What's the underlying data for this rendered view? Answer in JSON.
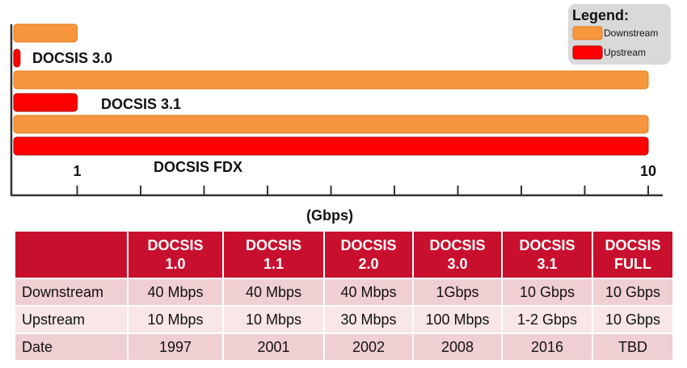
{
  "chart_data": {
    "type": "bar",
    "orientation": "horizontal",
    "categories": [
      "DOCSIS 3.0",
      "DOCSIS 3.1",
      "DOCSIS FDX"
    ],
    "series": [
      {
        "name": "Downstream",
        "color": "#f7963c",
        "values": [
          1,
          10,
          10
        ]
      },
      {
        "name": "Upstream",
        "color": "#ff0000",
        "values": [
          0.1,
          1,
          10
        ]
      }
    ],
    "xlabel": "(Gbps)",
    "xlim": [
      0,
      10
    ],
    "xticks": [
      1,
      10
    ],
    "xminor_ticks": [
      2,
      3,
      4,
      5,
      6,
      7,
      8,
      9
    ],
    "legend_title": "Legend:",
    "legend": "upper right"
  },
  "table": {
    "columns": [
      "DOCSIS 1.0",
      "DOCSIS 1.1",
      "DOCSIS 2.0",
      "DOCSIS 3.0",
      "DOCSIS 3.1",
      "DOCSIS FULL"
    ],
    "rows": [
      [
        "Downstream",
        "40 Mbps",
        "40 Mbps",
        "40 Mbps",
        "1Gbps",
        "10 Gbps",
        "10 Gbps"
      ],
      [
        "Upstream",
        "10 Mbps",
        "10 Mbps",
        "30 Mbps",
        "100 Mbps",
        "1-2 Gbps",
        "10 Gbps"
      ],
      [
        "Date",
        "1997",
        "2001",
        "2002",
        "2008",
        "2016",
        "TBD"
      ]
    ]
  }
}
